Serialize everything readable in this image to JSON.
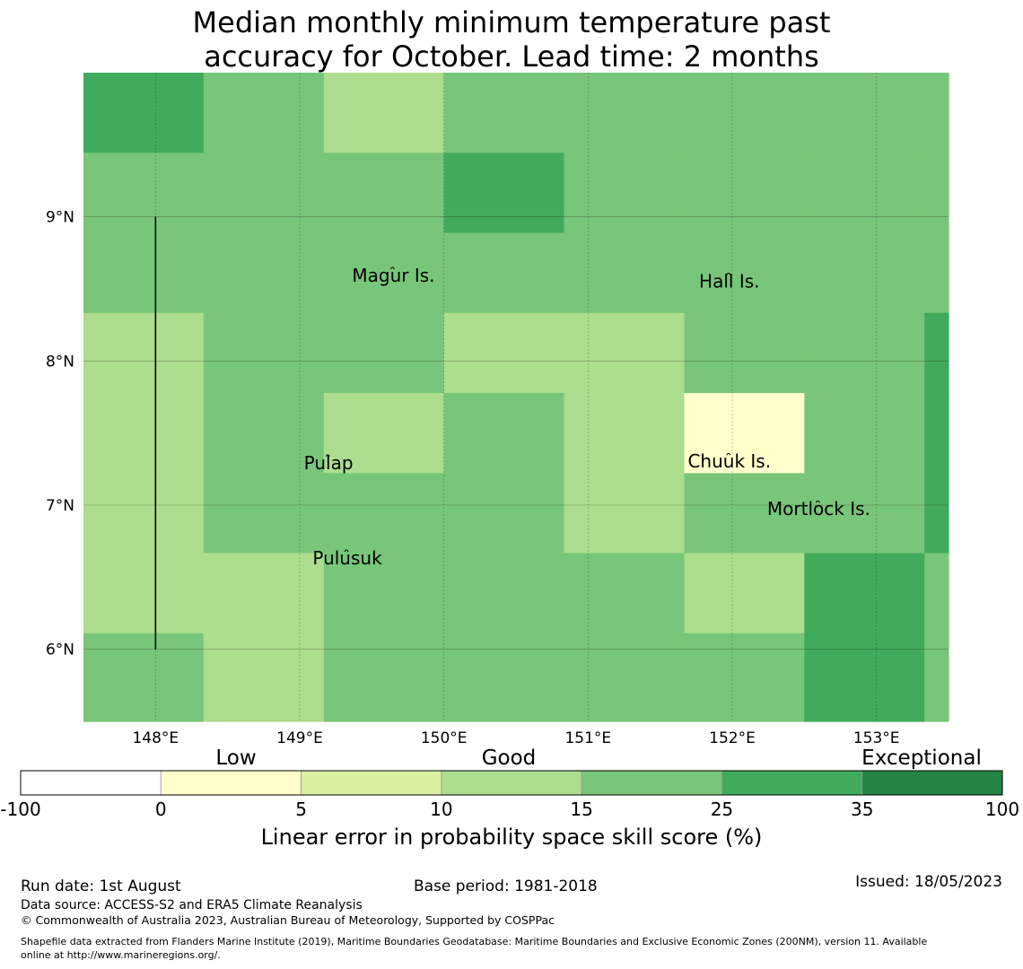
{
  "title": {
    "line1": "Median monthly minimum temperature past",
    "line2": "accuracy for October. Lead time: 2 months"
  },
  "map": {
    "lon_range": [
      147.5,
      153.5
    ],
    "lat_range": [
      5.5,
      10.0
    ],
    "lon_ticks": [
      {
        "value": 148,
        "label": "148°E"
      },
      {
        "value": 149,
        "label": "149°E"
      },
      {
        "value": 150,
        "label": "150°E"
      },
      {
        "value": 151,
        "label": "151°E"
      },
      {
        "value": 152,
        "label": "152°E"
      },
      {
        "value": 153,
        "label": "153°E"
      }
    ],
    "lat_ticks": [
      {
        "value": 9,
        "label": "9°N"
      },
      {
        "value": 8,
        "label": "8°N"
      },
      {
        "value": 7,
        "label": "7°N"
      },
      {
        "value": 6,
        "label": "6°N"
      }
    ],
    "grid_lon_edges": [
      147.5,
      148.333,
      149.167,
      150.0,
      150.833,
      151.667,
      152.5,
      153.333,
      153.5
    ],
    "grid_lat_edges": [
      10.0,
      9.444,
      8.889,
      8.333,
      7.778,
      7.222,
      6.667,
      6.111,
      5.5
    ],
    "cell_classes": [
      [
        5,
        4,
        3,
        4,
        4,
        4,
        4,
        4
      ],
      [
        4,
        4,
        4,
        5,
        4,
        4,
        4,
        4
      ],
      [
        4,
        4,
        4,
        4,
        4,
        4,
        4,
        4
      ],
      [
        3,
        4,
        4,
        3,
        3,
        4,
        4,
        5
      ],
      [
        3,
        4,
        3,
        4,
        3,
        1,
        4,
        5
      ],
      [
        3,
        4,
        4,
        4,
        3,
        4,
        4,
        5
      ],
      [
        3,
        3,
        4,
        4,
        4,
        3,
        5,
        4
      ],
      [
        4,
        3,
        4,
        4,
        4,
        4,
        5,
        4
      ]
    ],
    "islands": [
      {
        "name": "Magur Is.",
        "lon": 149.65,
        "lat": 8.55
      },
      {
        "name": "Hall Is.",
        "lon": 151.98,
        "lat": 8.51
      },
      {
        "name": "Pulap",
        "lon": 149.2,
        "lat": 7.25
      },
      {
        "name": "Chuuk Is.",
        "lon": 151.98,
        "lat": 7.26
      },
      {
        "name": "Mortlock Is.",
        "lon": 152.6,
        "lat": 6.93
      },
      {
        "name": "Pulusuk",
        "lon": 149.33,
        "lat": 6.59
      }
    ],
    "boundary_line": {
      "lon": 148.0,
      "lat_from": 9.0,
      "lat_to": 6.0
    }
  },
  "colorbar": {
    "category_labels": [
      "Low",
      "Good",
      "Exceptional"
    ],
    "ticks": [
      "-100",
      "0",
      "5",
      "10",
      "15",
      "25",
      "35",
      "100"
    ],
    "colors": [
      "#ffffff",
      "#ffffcc",
      "#d9f0a3",
      "#addd8e",
      "#78c679",
      "#41ab5d",
      "#238443"
    ],
    "label": "Linear error in probability space skill score (%)"
  },
  "footer": {
    "run_date": "Run date: 1st August",
    "base_period": "Base period: 1981-2018",
    "issued": "Issued: 18/05/2023",
    "data_source": "Data source: ACCESS-S2 and ERA5 Climate Reanalysis",
    "copyright": "© Commonwealth of Australia 2023, Australian Bureau of Meteorology, Supported by COSPPac",
    "shapefile_line1": "Shapefile data extracted from Flanders Marine Institute (2019), Maritime Boundaries Geodatabase: Maritime Boundaries and Exclusive Economic Zones (200NM), version 11. Available",
    "shapefile_line2": "online at http://www.marineregions.org/."
  }
}
